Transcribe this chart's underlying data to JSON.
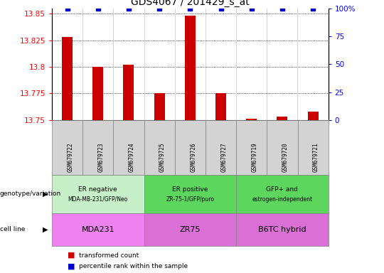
{
  "title": "GDS4067 / 201429_s_at",
  "samples": [
    "GSM679722",
    "GSM679723",
    "GSM679724",
    "GSM679725",
    "GSM679726",
    "GSM679727",
    "GSM679719",
    "GSM679720",
    "GSM679721"
  ],
  "transformed_counts": [
    13.828,
    13.8,
    13.802,
    13.775,
    13.848,
    13.775,
    13.751,
    13.753,
    13.758
  ],
  "percentile_ranks": [
    100,
    100,
    100,
    100,
    100,
    100,
    100,
    100,
    100
  ],
  "ylim_left": [
    13.75,
    13.855
  ],
  "ylim_right": [
    0,
    100
  ],
  "yticks_left": [
    13.75,
    13.775,
    13.8,
    13.825,
    13.85
  ],
  "yticks_right": [
    0,
    25,
    50,
    75,
    100
  ],
  "bar_color": "#cc0000",
  "marker_color": "#0000cc",
  "plot_bg": "#ffffff",
  "sample_row_bg": "#d3d3d3",
  "group_colors": [
    "#c8f0c8",
    "#5cd65c",
    "#5cd65c"
  ],
  "cell_line_colors": [
    "#ee82ee",
    "#da70d6",
    "#da70d6"
  ],
  "groups": [
    {
      "label": "ER negative",
      "sublabel": "MDA-MB-231/GFP/Neo",
      "start": 0,
      "end": 3
    },
    {
      "label": "ER positive",
      "sublabel": "ZR-75-1/GFP/puro",
      "start": 3,
      "end": 6
    },
    {
      "label": "GFP+ and",
      "sublabel": "estrogen-independent",
      "start": 6,
      "end": 9
    }
  ],
  "cell_lines": [
    {
      "label": "MDA231",
      "start": 0,
      "end": 3
    },
    {
      "label": "ZR75",
      "start": 3,
      "end": 6
    },
    {
      "label": "B6TC hybrid",
      "start": 6,
      "end": 9
    }
  ],
  "genotype_label": "genotype/variation",
  "cell_line_label": "cell line"
}
